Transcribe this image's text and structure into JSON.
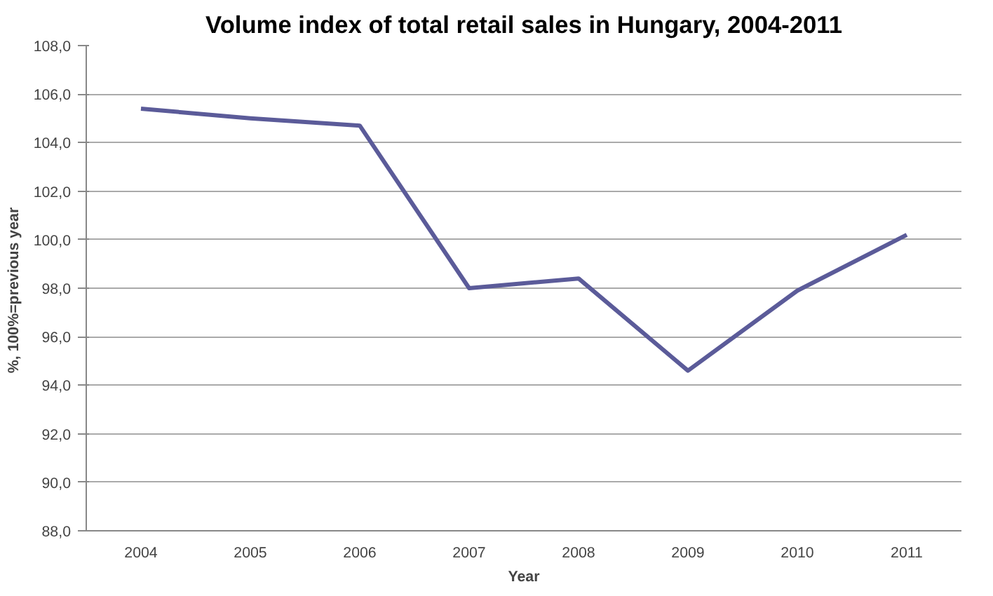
{
  "chart_data": {
    "type": "line",
    "title": "Volume index of total retail sales in Hungary, 2004-2011",
    "xlabel": "Year",
    "ylabel": "%, 100%=previous  year",
    "categories": [
      "2004",
      "2005",
      "2006",
      "2007",
      "2008",
      "2009",
      "2010",
      "2011"
    ],
    "series": [
      {
        "color": "#5b5b99",
        "values": [
          105.4,
          105.0,
          104.7,
          98.0,
          98.4,
          94.6,
          97.9,
          100.2
        ]
      }
    ],
    "ylim": [
      88,
      108
    ],
    "yticks": [
      {
        "value": 88,
        "label": "88,0"
      },
      {
        "value": 90,
        "label": "90,0"
      },
      {
        "value": 92,
        "label": "92,0"
      },
      {
        "value": 94,
        "label": "94,0"
      },
      {
        "value": 96,
        "label": "96,0"
      },
      {
        "value": 98,
        "label": "98,0"
      },
      {
        "value": 100,
        "label": "100,0"
      },
      {
        "value": 102,
        "label": "102,0"
      },
      {
        "value": 104,
        "label": "104,0"
      },
      {
        "value": 106,
        "label": "106,0"
      },
      {
        "value": 108,
        "label": "108,0"
      }
    ],
    "grid": "y",
    "marker": "none",
    "line_style": "solid"
  }
}
